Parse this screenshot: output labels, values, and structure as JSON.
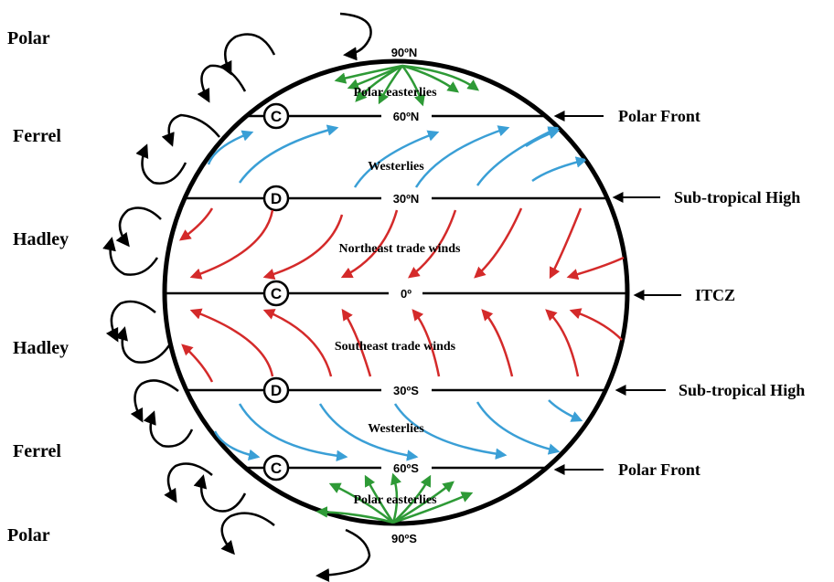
{
  "cells": {
    "polar_north": "Polar",
    "ferrel_north": "Ferrel",
    "hadley_north": "Hadley",
    "hadley_south": "Hadley",
    "ferrel_south": "Ferrel",
    "polar_south": "Polar"
  },
  "latitudes": {
    "north_pole": "90ºN",
    "lat_60n": "60ºN",
    "lat_30n": "30ºN",
    "equator": "0º",
    "lat_30s": "30ºS",
    "lat_60s": "60ºS",
    "south_pole": "90ºS"
  },
  "pressure": {
    "lat_60n": "C",
    "lat_30n": "D",
    "equator": "C",
    "lat_30s": "D",
    "lat_60s": "C"
  },
  "winds": {
    "polar_easterlies_north": "Polar easterlies",
    "westerlies_north": "Westerlies",
    "ne_trades": "Northeast trade winds",
    "se_trades": "Southeast trade winds",
    "westerlies_south": "Westerlies",
    "polar_easterlies_south": "Polar easterlies"
  },
  "side_labels": {
    "polar_front_north": "Polar Front",
    "subtropical_high_north": "Sub-tropical High",
    "itcz": "ITCZ",
    "subtropical_high_south": "Sub-tropical High",
    "polar_front_south": "Polar Front"
  },
  "colors": {
    "outline": "#000000",
    "polar_easterlies": "#2e9a36",
    "westerlies": "#3a9fd6",
    "trade_winds": "#d42a2a"
  }
}
